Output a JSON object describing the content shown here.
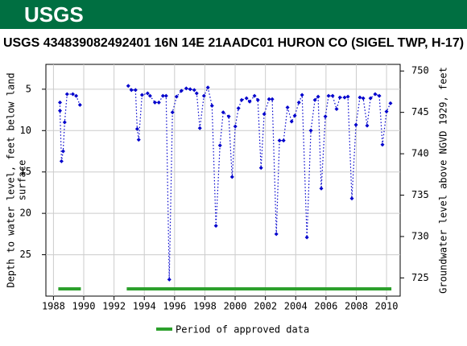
{
  "header": {
    "logo": "USGS"
  },
  "chart_data": {
    "type": "line",
    "title": "USGS 434839082492401 16N 14E 21AADC01 HURON CO (SIGEL TWP, H-17)",
    "y_label": [
      "Depth to water level, feet below land",
      "surface"
    ],
    "y2_label": "Groundwater level above NGVD 1929, feet",
    "y_inverted": true,
    "grid": true,
    "x": [
      1988.43,
      1988.43,
      1988.53,
      1988.64,
      1988.74,
      1988.9,
      1989.28,
      1989.5,
      1989.75,
      null,
      1992.94,
      1993.15,
      1993.42,
      1993.53,
      1993.63,
      1993.85,
      1994.22,
      1994.38,
      1994.7,
      1994.96,
      1995.23,
      1995.44,
      1995.65,
      1995.86,
      1996.13,
      1996.45,
      1996.77,
      1997.03,
      1997.3,
      1997.46,
      1997.67,
      1997.94,
      1998.2,
      1998.47,
      1998.73,
      1999.0,
      1999.21,
      1999.58,
      1999.8,
      2000.01,
      2000.22,
      2000.43,
      2000.75,
      2000.96,
      2001.28,
      2001.5,
      2001.71,
      2001.92,
      2002.24,
      2002.45,
      2002.72,
      2002.93,
      2003.2,
      2003.46,
      2003.73,
      2003.94,
      2004.21,
      2004.42,
      2004.74,
      2005.0,
      2005.27,
      2005.48,
      2005.69,
      2005.96,
      2006.17,
      2006.44,
      2006.7,
      2006.92,
      2007.23,
      2007.45,
      2007.71,
      2007.98,
      2008.24,
      2008.46,
      2008.72,
      2008.94,
      2009.25,
      2009.52,
      2009.73,
      2010.0,
      2010.26
    ],
    "series": [
      {
        "name": "Depth to water level",
        "color": "#0000cc",
        "values": [
          6.6,
          7.6,
          13.7,
          12.5,
          9.0,
          5.6,
          5.6,
          5.8,
          6.9,
          null,
          4.6,
          5.1,
          5.1,
          9.8,
          11.1,
          5.7,
          5.5,
          5.8,
          6.6,
          6.6,
          5.8,
          5.8,
          28.0,
          7.8,
          5.9,
          5.2,
          4.9,
          5.0,
          5.1,
          5.5,
          9.7,
          5.8,
          4.8,
          7.0,
          21.5,
          11.8,
          7.8,
          8.3,
          15.6,
          9.5,
          7.3,
          6.3,
          6.1,
          6.5,
          5.8,
          6.3,
          14.5,
          8.0,
          6.2,
          6.2,
          22.5,
          11.2,
          11.2,
          7.2,
          8.9,
          8.2,
          6.6,
          5.7,
          22.9,
          10.0,
          6.3,
          5.9,
          17.0,
          8.3,
          5.8,
          5.8,
          7.4,
          6.0,
          6.0,
          5.9,
          18.2,
          9.3,
          6.0,
          6.1,
          9.4,
          6.1,
          5.6,
          5.8,
          11.7,
          7.7,
          6.7
        ]
      }
    ],
    "approved": {
      "name": "Period of approved data",
      "color": "#2ca02c",
      "periods": [
        [
          1988.32,
          1989.81
        ],
        [
          1992.84,
          2010.32
        ]
      ]
    },
    "xlim": [
      1987.5,
      2010.9
    ],
    "xticks": [
      1988,
      1990,
      1992,
      1994,
      1996,
      1998,
      2000,
      2002,
      2004,
      2006,
      2008,
      2010
    ],
    "ylim": [
      2,
      30
    ],
    "yticks": [
      5,
      10,
      15,
      20,
      25
    ],
    "y2lim": [
      750.8,
      722.8
    ],
    "y2ticks": [
      725,
      730,
      735,
      740,
      745,
      750
    ]
  }
}
